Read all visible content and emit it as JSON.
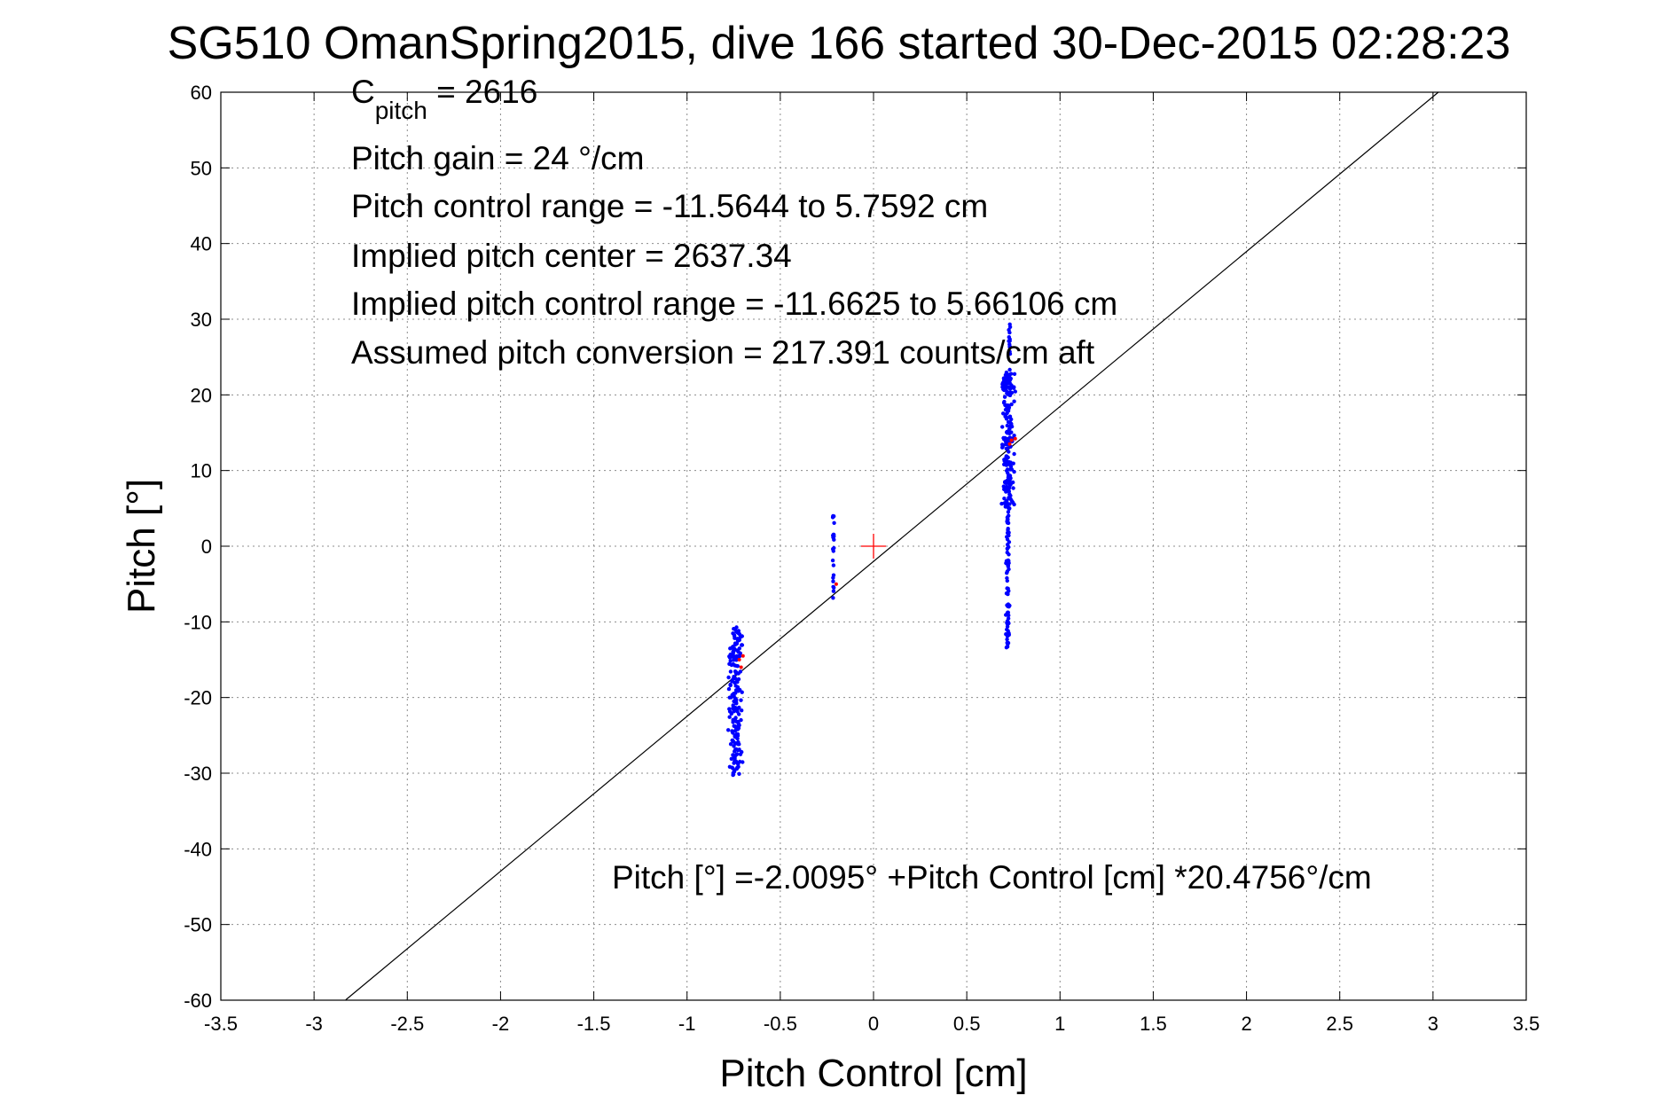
{
  "chart_data": {
    "type": "scatter",
    "title": "SG510 OmanSpring2015, dive 166 started 30-Dec-2015 02:28:23",
    "xlabel": "Pitch Control [cm]",
    "ylabel": "Pitch [°]",
    "xlim": [
      -3.5,
      3.5
    ],
    "ylim": [
      -60,
      60
    ],
    "xticks": [
      -3.5,
      -3,
      -2.5,
      -2,
      -1.5,
      -1,
      -0.5,
      0,
      0.5,
      1,
      1.5,
      2,
      2.5,
      3,
      3.5
    ],
    "xtick_labels": [
      "-3.5",
      "-3",
      "-2.5",
      "-2",
      "-1.5",
      "-1",
      "-0.5",
      "0",
      "0.5",
      "1",
      "1.5",
      "2",
      "2.5",
      "3",
      "3.5"
    ],
    "yticks": [
      -60,
      -50,
      -40,
      -30,
      -20,
      -10,
      0,
      10,
      20,
      30,
      40,
      50,
      60
    ],
    "ytick_labels": [
      "-60",
      "-50",
      "-40",
      "-30",
      "-20",
      "-10",
      "0",
      "10",
      "20",
      "30",
      "40",
      "50",
      "60"
    ],
    "grid": true,
    "fit_line": {
      "intercept": -2.0095,
      "slope": 20.4756,
      "x_range": [
        -2.83,
        3.03
      ],
      "color": "#000000"
    },
    "center_marker": {
      "x": 0,
      "y": 0,
      "color": "#ff0000"
    },
    "series": [
      {
        "color": "#0000ff",
        "clusters": [
          {
            "x_center": -0.74,
            "x_spread": 0.05,
            "y_min": -30.5,
            "y_max": -10.5,
            "count": 190
          },
          {
            "x_center": -0.215,
            "x_spread": 0.006,
            "y_min": -7,
            "y_max": 4,
            "count": 22
          },
          {
            "x_center": 0.72,
            "x_spread": 0.045,
            "y_min": 5,
            "y_max": 23,
            "count": 200
          },
          {
            "x_center": 0.72,
            "x_spread": 0.012,
            "y_min": -13.5,
            "y_max": 5,
            "count": 80
          },
          {
            "x_center": 0.73,
            "x_spread": 0.006,
            "y_min": 23,
            "y_max": 29.5,
            "count": 14
          }
        ]
      },
      {
        "color": "#ff0000",
        "points": [
          [
            -0.72,
            -15
          ],
          [
            -0.7,
            -14.5
          ],
          [
            -0.71,
            -16
          ],
          [
            0.74,
            14
          ],
          [
            0.73,
            13.5
          ],
          [
            0.76,
            14.2
          ],
          [
            -0.2,
            -5
          ]
        ]
      }
    ],
    "annotations": {
      "c_pitch_main": "C",
      "c_pitch_sub": "pitch",
      "c_pitch_rest": " = 2616",
      "lines": [
        "Pitch gain = 24 °/cm",
        "Pitch control range = -11.5644 to 5.7592 cm",
        "Implied pitch center = 2637.34",
        "Implied pitch control range = -11.6625 to 5.66106 cm",
        "Assumed pitch conversion = 217.391 counts/cm aft"
      ],
      "fit_text": "Pitch [°] =-2.0095° +Pitch Control [cm] *20.4756°/cm"
    }
  }
}
